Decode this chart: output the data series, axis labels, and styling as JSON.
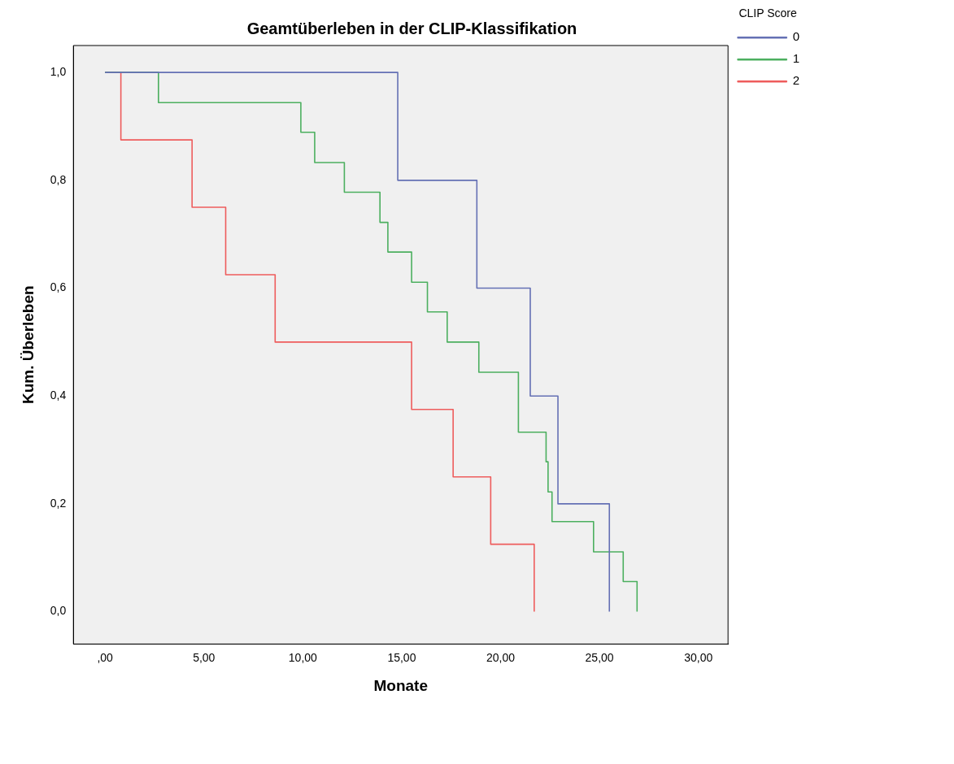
{
  "chart_data": {
    "type": "step",
    "title": "Geamtüberleben in der CLIP-Klassifikation",
    "xlabel": "Monate",
    "ylabel": "Kum. Überleben",
    "legend_title": "CLIP Score",
    "legend": "top right",
    "grid": false,
    "marker": "none",
    "xlim": [
      -1.6,
      31.5
    ],
    "ylim": [
      -0.06,
      1.05
    ],
    "xticks": [
      {
        "value": 0,
        "label": ",00"
      },
      {
        "value": 5,
        "label": "5,00"
      },
      {
        "value": 10,
        "label": "10,00"
      },
      {
        "value": 15,
        "label": "15,00"
      },
      {
        "value": 20,
        "label": "20,00"
      },
      {
        "value": 25,
        "label": "25,00"
      },
      {
        "value": 30,
        "label": "30,00"
      }
    ],
    "yticks": [
      {
        "value": 0,
        "label": "0,0"
      },
      {
        "value": 0.2,
        "label": "0,2"
      },
      {
        "value": 0.4,
        "label": "0,4"
      },
      {
        "value": 0.6,
        "label": "0,6"
      },
      {
        "value": 0.8,
        "label": "0,8"
      },
      {
        "value": 1,
        "label": "1,0"
      }
    ],
    "series": [
      {
        "name": "0",
        "color": "#6470b4",
        "x": [
          0,
          14.8,
          18.8,
          21.5,
          22.9,
          25.5
        ],
        "values": [
          1,
          0.8,
          0.6,
          0.4,
          0.2,
          0
        ]
      },
      {
        "name": "1",
        "color": "#4caf5f",
        "x": [
          0,
          2.7,
          9.9,
          10.6,
          12.1,
          13.9,
          14.3,
          15.5,
          16.3,
          17.3,
          18.9,
          20.9,
          22.3,
          22.4,
          22.6,
          24.7,
          26.2,
          26.9
        ],
        "values": [
          1,
          0.944,
          0.889,
          0.833,
          0.778,
          0.722,
          0.667,
          0.611,
          0.556,
          0.5,
          0.444,
          0.333,
          0.278,
          0.222,
          0.167,
          0.111,
          0.056,
          0
        ]
      },
      {
        "name": "2",
        "color": "#ee5c5c",
        "x": [
          0,
          0.8,
          4.4,
          6.1,
          8.6,
          15.5,
          17.6,
          19.5,
          21.7
        ],
        "values": [
          1,
          0.875,
          0.75,
          0.625,
          0.5,
          0.375,
          0.25,
          0.125,
          0
        ]
      }
    ]
  }
}
